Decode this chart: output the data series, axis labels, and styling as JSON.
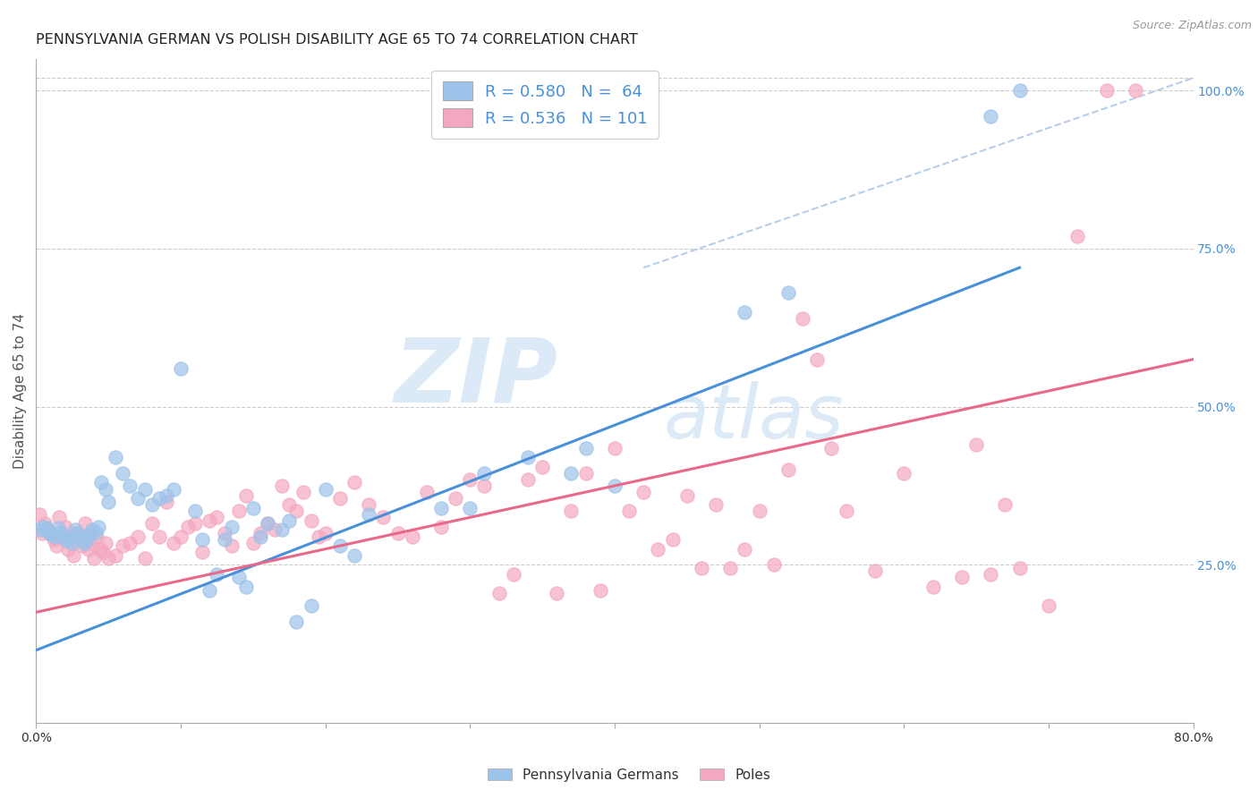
{
  "title": "PENNSYLVANIA GERMAN VS POLISH DISABILITY AGE 65 TO 74 CORRELATION CHART",
  "source": "Source: ZipAtlas.com",
  "ylabel": "Disability Age 65 to 74",
  "x_min": 0.0,
  "x_max": 0.8,
  "y_min": 0.0,
  "y_max": 1.05,
  "y_ticks": [
    0.0,
    0.25,
    0.5,
    0.75,
    1.0
  ],
  "y_tick_labels": [
    "",
    "25.0%",
    "50.0%",
    "75.0%",
    "100.0%"
  ],
  "german_color": "#9DC3EA",
  "polish_color": "#F4A8BF",
  "german_R": 0.58,
  "german_N": 64,
  "polish_R": 0.536,
  "polish_N": 101,
  "legend_german_label": "Pennsylvania Germans",
  "legend_polish_label": "Poles",
  "watermark_zip": "ZIP",
  "watermark_atlas": "atlas",
  "german_line_color": "#4A90D9",
  "polish_line_color": "#E8688A",
  "diagonal_line_color": "#B0C8E8",
  "german_line": [
    [
      0.0,
      0.115
    ],
    [
      0.68,
      0.72
    ]
  ],
  "polish_line": [
    [
      0.0,
      0.175
    ],
    [
      0.8,
      0.575
    ]
  ],
  "diagonal_line": [
    [
      0.42,
      0.72
    ],
    [
      0.8,
      1.02
    ]
  ],
  "german_scatter": [
    [
      0.003,
      0.305
    ],
    [
      0.005,
      0.31
    ],
    [
      0.007,
      0.308
    ],
    [
      0.009,
      0.3
    ],
    [
      0.011,
      0.298
    ],
    [
      0.013,
      0.295
    ],
    [
      0.015,
      0.308
    ],
    [
      0.017,
      0.302
    ],
    [
      0.019,
      0.295
    ],
    [
      0.021,
      0.288
    ],
    [
      0.023,
      0.292
    ],
    [
      0.025,
      0.285
    ],
    [
      0.027,
      0.305
    ],
    [
      0.029,
      0.3
    ],
    [
      0.031,
      0.29
    ],
    [
      0.033,
      0.285
    ],
    [
      0.035,
      0.29
    ],
    [
      0.037,
      0.298
    ],
    [
      0.039,
      0.305
    ],
    [
      0.041,
      0.302
    ],
    [
      0.043,
      0.31
    ],
    [
      0.045,
      0.38
    ],
    [
      0.048,
      0.37
    ],
    [
      0.05,
      0.35
    ],
    [
      0.055,
      0.42
    ],
    [
      0.06,
      0.395
    ],
    [
      0.065,
      0.375
    ],
    [
      0.07,
      0.355
    ],
    [
      0.075,
      0.37
    ],
    [
      0.08,
      0.345
    ],
    [
      0.085,
      0.355
    ],
    [
      0.09,
      0.36
    ],
    [
      0.095,
      0.37
    ],
    [
      0.1,
      0.56
    ],
    [
      0.11,
      0.335
    ],
    [
      0.115,
      0.29
    ],
    [
      0.12,
      0.21
    ],
    [
      0.125,
      0.235
    ],
    [
      0.13,
      0.29
    ],
    [
      0.135,
      0.31
    ],
    [
      0.14,
      0.23
    ],
    [
      0.145,
      0.215
    ],
    [
      0.15,
      0.34
    ],
    [
      0.155,
      0.295
    ],
    [
      0.16,
      0.315
    ],
    [
      0.17,
      0.305
    ],
    [
      0.175,
      0.32
    ],
    [
      0.18,
      0.16
    ],
    [
      0.19,
      0.185
    ],
    [
      0.2,
      0.37
    ],
    [
      0.21,
      0.28
    ],
    [
      0.22,
      0.265
    ],
    [
      0.23,
      0.33
    ],
    [
      0.28,
      0.34
    ],
    [
      0.3,
      0.34
    ],
    [
      0.31,
      0.395
    ],
    [
      0.34,
      0.42
    ],
    [
      0.37,
      0.395
    ],
    [
      0.38,
      0.435
    ],
    [
      0.4,
      0.375
    ],
    [
      0.49,
      0.65
    ],
    [
      0.52,
      0.68
    ],
    [
      0.66,
      0.96
    ],
    [
      0.68,
      1.0
    ]
  ],
  "polish_scatter": [
    [
      0.002,
      0.33
    ],
    [
      0.004,
      0.3
    ],
    [
      0.006,
      0.315
    ],
    [
      0.008,
      0.305
    ],
    [
      0.01,
      0.3
    ],
    [
      0.012,
      0.29
    ],
    [
      0.014,
      0.28
    ],
    [
      0.016,
      0.325
    ],
    [
      0.018,
      0.295
    ],
    [
      0.02,
      0.31
    ],
    [
      0.022,
      0.275
    ],
    [
      0.024,
      0.285
    ],
    [
      0.026,
      0.265
    ],
    [
      0.028,
      0.3
    ],
    [
      0.03,
      0.29
    ],
    [
      0.032,
      0.28
    ],
    [
      0.034,
      0.315
    ],
    [
      0.036,
      0.275
    ],
    [
      0.038,
      0.285
    ],
    [
      0.04,
      0.26
    ],
    [
      0.042,
      0.295
    ],
    [
      0.044,
      0.275
    ],
    [
      0.046,
      0.27
    ],
    [
      0.048,
      0.285
    ],
    [
      0.05,
      0.26
    ],
    [
      0.055,
      0.265
    ],
    [
      0.06,
      0.28
    ],
    [
      0.065,
      0.285
    ],
    [
      0.07,
      0.295
    ],
    [
      0.075,
      0.26
    ],
    [
      0.08,
      0.315
    ],
    [
      0.085,
      0.295
    ],
    [
      0.09,
      0.35
    ],
    [
      0.095,
      0.285
    ],
    [
      0.1,
      0.295
    ],
    [
      0.105,
      0.31
    ],
    [
      0.11,
      0.315
    ],
    [
      0.115,
      0.27
    ],
    [
      0.12,
      0.32
    ],
    [
      0.125,
      0.325
    ],
    [
      0.13,
      0.3
    ],
    [
      0.135,
      0.28
    ],
    [
      0.14,
      0.335
    ],
    [
      0.145,
      0.36
    ],
    [
      0.15,
      0.285
    ],
    [
      0.155,
      0.3
    ],
    [
      0.16,
      0.315
    ],
    [
      0.165,
      0.305
    ],
    [
      0.17,
      0.375
    ],
    [
      0.175,
      0.345
    ],
    [
      0.18,
      0.335
    ],
    [
      0.185,
      0.365
    ],
    [
      0.19,
      0.32
    ],
    [
      0.195,
      0.295
    ],
    [
      0.2,
      0.3
    ],
    [
      0.21,
      0.355
    ],
    [
      0.22,
      0.38
    ],
    [
      0.23,
      0.345
    ],
    [
      0.24,
      0.325
    ],
    [
      0.25,
      0.3
    ],
    [
      0.26,
      0.295
    ],
    [
      0.27,
      0.365
    ],
    [
      0.28,
      0.31
    ],
    [
      0.29,
      0.355
    ],
    [
      0.3,
      0.385
    ],
    [
      0.31,
      0.375
    ],
    [
      0.32,
      0.205
    ],
    [
      0.33,
      0.235
    ],
    [
      0.34,
      0.385
    ],
    [
      0.35,
      0.405
    ],
    [
      0.36,
      0.205
    ],
    [
      0.37,
      0.335
    ],
    [
      0.38,
      0.395
    ],
    [
      0.39,
      0.21
    ],
    [
      0.4,
      0.435
    ],
    [
      0.41,
      0.335
    ],
    [
      0.42,
      0.365
    ],
    [
      0.43,
      0.275
    ],
    [
      0.44,
      0.29
    ],
    [
      0.45,
      0.36
    ],
    [
      0.46,
      0.245
    ],
    [
      0.47,
      0.345
    ],
    [
      0.48,
      0.245
    ],
    [
      0.49,
      0.275
    ],
    [
      0.5,
      0.335
    ],
    [
      0.51,
      0.25
    ],
    [
      0.52,
      0.4
    ],
    [
      0.53,
      0.64
    ],
    [
      0.54,
      0.575
    ],
    [
      0.55,
      0.435
    ],
    [
      0.56,
      0.335
    ],
    [
      0.58,
      0.24
    ],
    [
      0.6,
      0.395
    ],
    [
      0.62,
      0.215
    ],
    [
      0.64,
      0.23
    ],
    [
      0.65,
      0.44
    ],
    [
      0.66,
      0.235
    ],
    [
      0.67,
      0.345
    ],
    [
      0.68,
      0.245
    ],
    [
      0.7,
      0.185
    ],
    [
      0.72,
      0.77
    ],
    [
      0.74,
      1.0
    ],
    [
      0.76,
      1.0
    ]
  ]
}
